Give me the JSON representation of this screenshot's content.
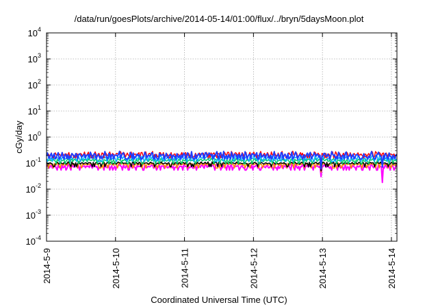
{
  "chart_data": {
    "type": "line",
    "title": "/data/run/goesPlots/archive/2014-05-14/01:00/flux/../bryn/5daysMoon.plot",
    "xlabel": "Coordinated Universal Time (UTC)",
    "ylabel": "cGy/day",
    "x_tick_labels": [
      "2014-5-9",
      "2014-5-10",
      "2014-5-11",
      "2014-5-12",
      "2014-5-13",
      "2014-5-14"
    ],
    "xlim_days": [
      0,
      5.08
    ],
    "y_scale": "log",
    "ylim": [
      0.0001,
      10000
    ],
    "y_ticks": [
      {
        "mantissa": "10",
        "exp": "-4",
        "value": 0.0001
      },
      {
        "mantissa": "10",
        "exp": "-3",
        "value": 0.001
      },
      {
        "mantissa": "10",
        "exp": "-2",
        "value": 0.01
      },
      {
        "mantissa": "10",
        "exp": "-1",
        "value": 0.1
      },
      {
        "mantissa": "10",
        "exp": "0",
        "value": 1
      },
      {
        "mantissa": "10",
        "exp": "1",
        "value": 10
      },
      {
        "mantissa": "10",
        "exp": "2",
        "value": 100
      },
      {
        "mantissa": "10",
        "exp": "3",
        "value": 1000
      },
      {
        "mantissa": "10",
        "exp": "4",
        "value": 10000
      }
    ],
    "grid": true,
    "legend": "none",
    "series": [
      {
        "color": "#ff00ff",
        "level": 0.075,
        "variation": 0.25,
        "dips": [
          {
            "x": 3.98,
            "value": 0.03
          },
          {
            "x": 4.87,
            "value": 0.018
          },
          {
            "x": 1.2,
            "value": 0.055
          }
        ],
        "width": 2
      },
      {
        "color": "#ff8c00",
        "level": 0.09,
        "variation": 0.15,
        "dips": [
          {
            "x": 3.98,
            "value": 0.045
          }
        ],
        "width": 1.5
      },
      {
        "color": "#000000",
        "level": 0.1,
        "variation": 0.15,
        "dips": [
          {
            "x": 3.98,
            "value": 0.05
          }
        ],
        "width": 1.5
      },
      {
        "color": "#00cc66",
        "level": 0.13,
        "variation": 0.2,
        "dips": [
          {
            "x": 3.98,
            "value": 0.06
          }
        ],
        "width": 1.5
      },
      {
        "color": "#00aaff",
        "level": 0.16,
        "variation": 0.35,
        "dips": [
          {
            "x": 3.98,
            "value": 0.07
          },
          {
            "x": 4.87,
            "value": 0.08
          }
        ],
        "width": 1.5
      },
      {
        "color": "#ff0000",
        "level": 0.22,
        "variation": 0.35,
        "dips": [
          {
            "x": 3.98,
            "value": 0.08
          }
        ],
        "width": 1.5
      },
      {
        "color": "#1f3dff",
        "level": 0.2,
        "variation": 0.45,
        "dips": [
          {
            "x": 3.98,
            "value": 0.06
          },
          {
            "x": 4.87,
            "value": 0.07
          }
        ],
        "width": 2
      }
    ]
  }
}
